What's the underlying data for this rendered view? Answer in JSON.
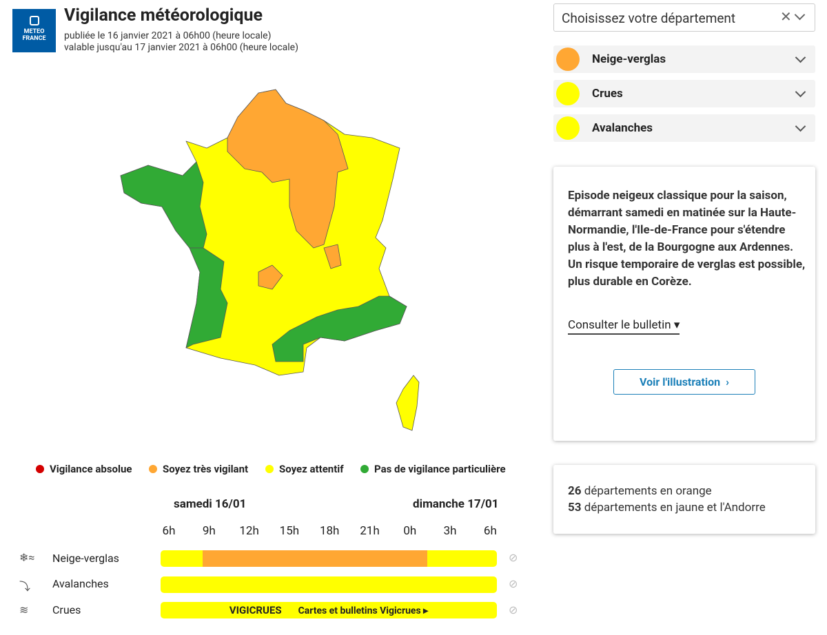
{
  "header": {
    "logo": [
      "METEO",
      "FRANCE"
    ],
    "title": "Vigilance météorologique",
    "published": "publiée le 16 janvier 2021 à 06h00 (heure locale)",
    "valid": "valable jusqu'au 17 janvier 2021 à 06h00 (heure locale)"
  },
  "legend": [
    "Vigilance absolue",
    "Soyez très vigilant",
    "Soyez attentif",
    "Pas de vigilance particulière"
  ],
  "timeline": {
    "days": [
      "samedi 16/01",
      "dimanche 17/01"
    ],
    "hours": [
      "6h",
      "9h",
      "12h",
      "15h",
      "18h",
      "21h",
      "0h",
      "3h",
      "6h"
    ],
    "rows": [
      "Neige-verglas",
      "Avalanches",
      "Crues"
    ],
    "vigicrues": {
      "logo": "VIGICRUES",
      "link": "Cartes et bulletins Vigicrues"
    }
  },
  "sidebar": {
    "select": "Choisissez votre département",
    "phenomena": [
      "Neige-verglas",
      "Crues",
      "Avalanches"
    ],
    "bulletin": "Episode neigeux classique pour la saison, démarrant samedi en matinée sur la Haute-Normandie, l'Ile-de-France pour s'étendre plus à l'est, de la Bourgogne aux Ardennes. Un risque temporaire de verglas est possible, plus durable en Corèze.",
    "consult": "Consulter le bulletin",
    "illustration": "Voir l'illustration",
    "stats": [
      {
        "count": "26",
        "text": "départements en orange"
      },
      {
        "count": "53",
        "text": "départements en jaune et l'Andorre"
      }
    ]
  }
}
